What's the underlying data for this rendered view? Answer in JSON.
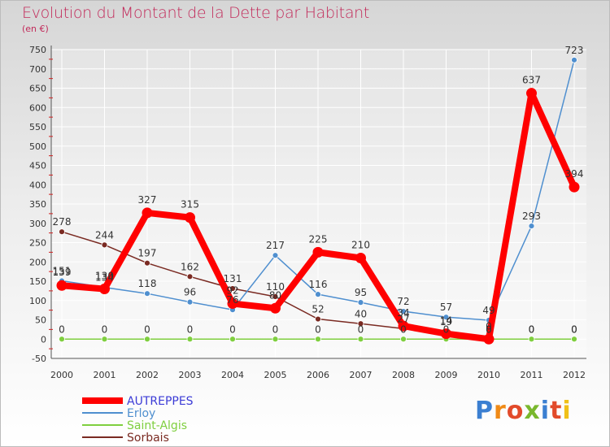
{
  "title": "Evolution du Montant de la Dette par Habitant",
  "subtitle": "(en €)",
  "logo": {
    "letters": [
      "P",
      "r",
      "o",
      "x",
      "i",
      "t",
      "i"
    ],
    "colors": [
      "#3b7fd1",
      "#f08a16",
      "#e24a2a",
      "#7ab82d",
      "#3b7fd1",
      "#e24a2a",
      "#f0c018"
    ]
  },
  "chart_data": {
    "type": "line",
    "x": [
      "2000",
      "2001",
      "2002",
      "2003",
      "2004",
      "2005",
      "2006",
      "2007",
      "2008",
      "2009",
      "2010",
      "2011",
      "2012"
    ],
    "ylim": [
      -50,
      750
    ],
    "yticks": [
      -50,
      0,
      50,
      100,
      150,
      200,
      250,
      300,
      350,
      400,
      450,
      500,
      550,
      600,
      650,
      700,
      750
    ],
    "grid": true,
    "legend_position": "bottom-left",
    "series": [
      {
        "name": "AUTREPPES",
        "color": "#ff0000",
        "legend_color": "#3b3bd6",
        "values": [
          139,
          130,
          327,
          315,
          92,
          80,
          225,
          210,
          34,
          14,
          0,
          637,
          394
        ],
        "labels": [
          "139",
          "130",
          "327",
          "315",
          "92",
          "80",
          "225",
          "210",
          "34",
          "14",
          "0",
          "637",
          "394"
        ]
      },
      {
        "name": "Erloy",
        "color": "#4f8fcf",
        "legend_color": "#4f8fcf",
        "values": [
          151,
          134,
          118,
          96,
          76,
          217,
          116,
          95,
          72,
          57,
          49,
          293,
          723
        ],
        "labels": [
          "151",
          "134",
          "118",
          "96",
          "76",
          "217",
          "116",
          "95",
          "72",
          "57",
          "49",
          "293",
          "723"
        ]
      },
      {
        "name": "Saint-Algis",
        "color": "#7fcf3f",
        "legend_color": "#7fcf3f",
        "values": [
          0,
          0,
          0,
          0,
          0,
          0,
          0,
          0,
          0,
          0,
          0,
          0,
          0
        ],
        "labels": [
          "0",
          "0",
          "0",
          "0",
          "0",
          "0",
          "0",
          "0",
          "0",
          "0",
          "0",
          "0",
          "0"
        ]
      },
      {
        "name": "Sorbais",
        "color": "#7a2a22",
        "legend_color": "#7a2a22",
        "values": [
          278,
          244,
          197,
          162,
          131,
          110,
          52,
          40,
          27,
          19,
          0,
          0,
          0
        ],
        "labels": [
          "278",
          "244",
          "197",
          "162",
          "131",
          "110",
          "52",
          "40",
          "27",
          "19",
          "0",
          "0",
          "0"
        ]
      }
    ]
  }
}
